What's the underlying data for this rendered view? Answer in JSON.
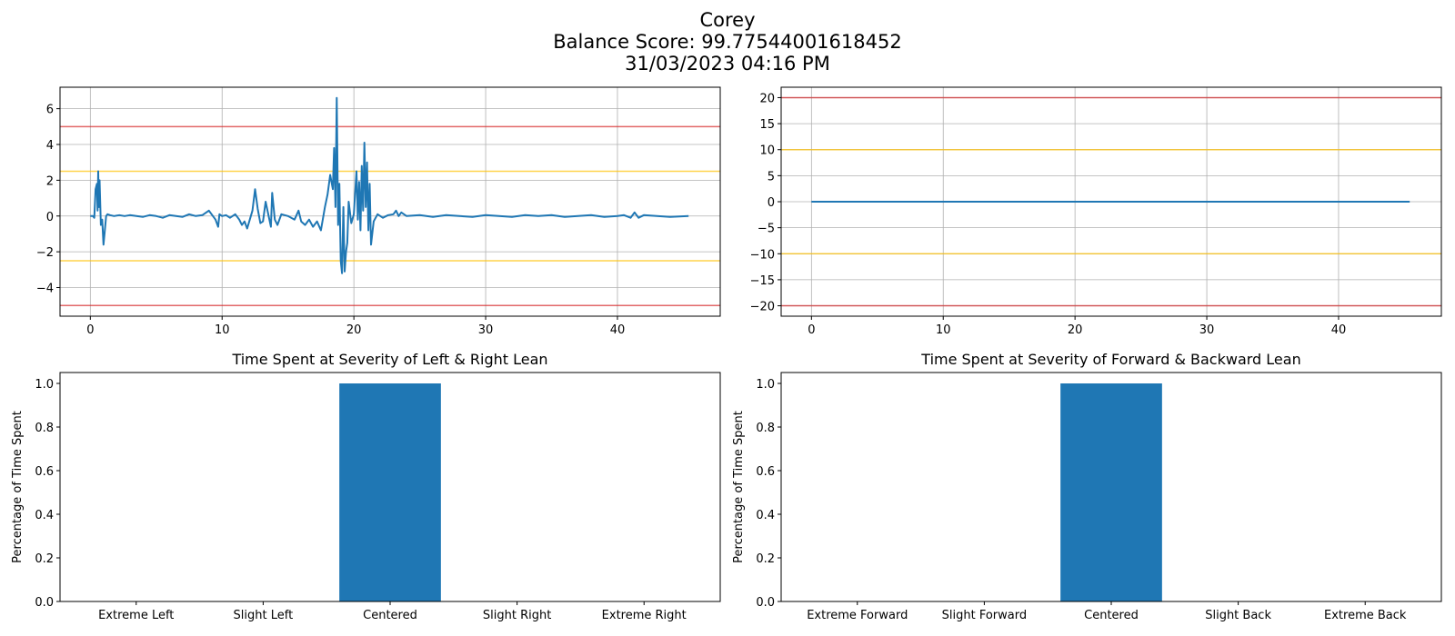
{
  "figure": {
    "title_lines": [
      "Corey",
      "Balance Score: 99.77544001618452",
      "31/03/2023 04:16 PM"
    ]
  },
  "colors": {
    "series": "#1f77b4",
    "extreme_line": "#d62728",
    "slight_line": "#ffc000",
    "grid": "#b0b0b0"
  },
  "chart_data": [
    {
      "type": "line",
      "title": "",
      "xlabel": "",
      "ylabel": "",
      "xlim": [
        -2.3,
        47.8
      ],
      "ylim": [
        -5.6,
        7.2
      ],
      "xticks": [
        0,
        10,
        20,
        30,
        40
      ],
      "yticks": [
        -4,
        -2,
        0,
        2,
        4,
        6
      ],
      "ytick_labels": [
        "−4",
        "−2",
        "0",
        "2",
        "4",
        "6"
      ],
      "grid": true,
      "threshold_lines": [
        {
          "y": 5,
          "level": "extreme"
        },
        {
          "y": -5,
          "level": "extreme"
        },
        {
          "y": 2.5,
          "level": "slight"
        },
        {
          "y": -2.5,
          "level": "slight"
        }
      ],
      "series": [
        {
          "x": [
            0,
            0.2,
            0.3,
            0.4,
            0.5,
            0.55,
            0.6,
            0.65,
            0.7,
            0.8,
            0.9,
            1.0,
            1.1,
            1.2,
            1.3,
            1.5,
            1.8,
            2.2,
            2.6,
            3.0,
            3.5,
            4.0,
            4.5,
            5.0,
            5.5,
            6.0,
            6.5,
            7.0,
            7.5,
            8.0,
            8.5,
            9.0,
            9.5,
            9.7,
            9.8,
            10.0,
            10.3,
            10.6,
            11.0,
            11.3,
            11.5,
            11.7,
            11.9,
            12.1,
            12.3,
            12.5,
            12.7,
            12.9,
            13.1,
            13.3,
            13.5,
            13.7,
            13.8,
            14.0,
            14.2,
            14.5,
            15.0,
            15.5,
            15.8,
            16.0,
            16.3,
            16.6,
            16.9,
            17.2,
            17.5,
            17.8,
            18.0,
            18.2,
            18.4,
            18.5,
            18.6,
            18.7,
            18.8,
            18.9,
            19.0,
            19.1,
            19.2,
            19.3,
            19.4,
            19.5,
            19.6,
            19.8,
            20.0,
            20.2,
            20.3,
            20.4,
            20.5,
            20.6,
            20.7,
            20.8,
            20.9,
            21.0,
            21.1,
            21.2,
            21.3,
            21.5,
            21.8,
            22.2,
            22.6,
            23.0,
            23.2,
            23.4,
            23.6,
            24.0,
            25.0,
            26.0,
            27.0,
            28.0,
            29.0,
            30.0,
            31.0,
            32.0,
            33.0,
            34.0,
            35.0,
            36.0,
            37.0,
            38.0,
            39.0,
            40.0,
            40.5,
            41.0,
            41.3,
            41.6,
            42.0,
            43.0,
            44.0,
            45.4
          ],
          "y": [
            0.0,
            0.0,
            -0.1,
            1.5,
            1.8,
            0.3,
            2.5,
            0.5,
            2.0,
            -0.5,
            -0.2,
            -1.6,
            -0.8,
            0.0,
            0.1,
            0.05,
            0.0,
            0.05,
            0.0,
            0.05,
            0.0,
            -0.05,
            0.05,
            0.0,
            -0.1,
            0.05,
            0.0,
            -0.05,
            0.1,
            0.0,
            0.05,
            0.3,
            -0.2,
            -0.6,
            0.1,
            0.0,
            0.05,
            -0.1,
            0.1,
            -0.2,
            -0.5,
            -0.3,
            -0.7,
            -0.2,
            0.3,
            1.5,
            0.4,
            -0.4,
            -0.3,
            0.8,
            0.1,
            -0.6,
            1.3,
            -0.2,
            -0.5,
            0.1,
            0.0,
            -0.2,
            0.3,
            -0.3,
            -0.5,
            -0.2,
            -0.6,
            -0.3,
            -0.8,
            0.5,
            1.2,
            2.3,
            1.5,
            3.8,
            0.5,
            6.6,
            -0.5,
            1.8,
            -2.5,
            -3.2,
            0.5,
            -3.1,
            -2.0,
            -1.5,
            0.8,
            -0.4,
            0.1,
            2.5,
            -0.2,
            1.9,
            -0.8,
            2.8,
            0.3,
            4.1,
            0.5,
            3.0,
            -0.8,
            1.8,
            -1.6,
            -0.3,
            0.1,
            -0.1,
            0.05,
            0.1,
            0.3,
            0.0,
            0.2,
            0.0,
            0.05,
            -0.05,
            0.05,
            0.0,
            -0.05,
            0.05,
            0.0,
            -0.05,
            0.05,
            0.0,
            0.05,
            -0.05,
            0.0,
            0.05,
            -0.05,
            0.0,
            0.05,
            -0.1,
            0.2,
            -0.1,
            0.05,
            0.0,
            -0.05,
            0.0
          ]
        }
      ]
    },
    {
      "type": "line",
      "title": "",
      "xlabel": "",
      "ylabel": "",
      "xlim": [
        -2.3,
        47.8
      ],
      "ylim": [
        -22,
        22
      ],
      "xticks": [
        0,
        10,
        20,
        30,
        40
      ],
      "yticks": [
        -20,
        -15,
        -10,
        -5,
        0,
        5,
        10,
        15,
        20
      ],
      "ytick_labels": [
        "−20",
        "−15",
        "−10",
        "−5",
        "0",
        "5",
        "10",
        "15",
        "20"
      ],
      "grid": true,
      "threshold_lines": [
        {
          "y": 20,
          "level": "extreme"
        },
        {
          "y": -20,
          "level": "extreme"
        },
        {
          "y": 10,
          "level": "slight"
        },
        {
          "y": -10,
          "level": "slight"
        }
      ],
      "series": [
        {
          "x": [
            0,
            45.4
          ],
          "y": [
            0,
            0
          ]
        }
      ]
    },
    {
      "type": "bar",
      "title": "Time Spent at Severity of Left & Right Lean",
      "xlabel": "",
      "ylabel": "Percentage of Time Spent",
      "categories": [
        "Extreme Left",
        "Slight Left",
        "Centered",
        "Slight Right",
        "Extreme Right"
      ],
      "values": [
        0,
        0,
        1.0,
        0,
        0
      ],
      "ylim": [
        0,
        1.05
      ],
      "yticks": [
        0.0,
        0.2,
        0.4,
        0.6,
        0.8,
        1.0
      ],
      "ytick_labels": [
        "0.0",
        "0.2",
        "0.4",
        "0.6",
        "0.8",
        "1.0"
      ],
      "grid": false
    },
    {
      "type": "bar",
      "title": "Time Spent at Severity of Forward & Backward Lean",
      "xlabel": "",
      "ylabel": "Percentage of Time Spent",
      "categories": [
        "Extreme Forward",
        "Slight Forward",
        "Centered",
        "Slight Back",
        "Extreme Back"
      ],
      "values": [
        0,
        0,
        1.0,
        0,
        0
      ],
      "ylim": [
        0,
        1.05
      ],
      "yticks": [
        0.0,
        0.2,
        0.4,
        0.6,
        0.8,
        1.0
      ],
      "ytick_labels": [
        "0.0",
        "0.2",
        "0.4",
        "0.6",
        "0.8",
        "1.0"
      ],
      "grid": false
    }
  ]
}
